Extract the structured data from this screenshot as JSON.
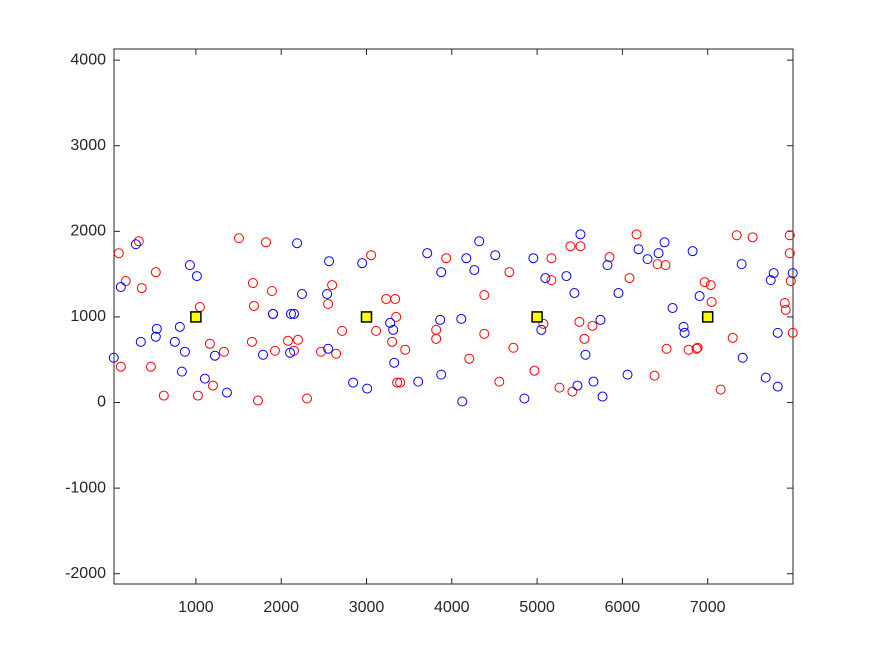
{
  "chart_data": {
    "type": "scatter",
    "xlim": [
      40,
      8000
    ],
    "ylim": [
      -2120,
      4130
    ],
    "xticks": [
      1000,
      2000,
      3000,
      4000,
      5000,
      6000,
      7000
    ],
    "yticks": [
      -2000,
      -1000,
      0,
      1000,
      2000,
      3000,
      4000
    ],
    "series": [
      {
        "color": "#ff0000",
        "marker": "circle",
        "x": [
          96,
          178,
          331,
          366,
          530,
          472,
          120,
          624,
          1024,
          1047,
          1164,
          1200,
          1329,
          1505,
          1657,
          1681,
          1669,
          1728,
          1822,
          1892,
          1904,
          1927,
          2080,
          2150,
          2197,
          2303,
          2467,
          2550,
          2597,
          2644,
          2714,
          3054,
          3113,
          3231,
          3301,
          3336,
          3348,
          3360,
          3395,
          3454,
          3817,
          3817,
          3935,
          4205,
          4381,
          4381,
          4557,
          4675,
          4722,
          4969,
          5074,
          5168,
          5168,
          5262,
          5414,
          5391,
          5508,
          5496,
          5555,
          5649,
          5849,
          6083,
          6166,
          6377,
          6412,
          6506,
          6518,
          6776,
          6870,
          6882,
          6964,
          7035,
          7046,
          7152,
          7293,
          7340,
          7527,
          7903,
          7915,
          7962,
          7962,
          7974,
          7997
        ],
        "values": [
          1744,
          1419,
          1884,
          1337,
          1523,
          419,
          419,
          81,
          81,
          1116,
          686,
          198,
          593,
          1919,
          709,
          1128,
          1396,
          23,
          1872,
          1303,
          1035,
          605,
          721,
          605,
          733,
          47,
          593,
          1151,
          1372,
          570,
          837,
          1721,
          837,
          1210,
          709,
          1210,
          1000,
          233,
          233,
          616,
          849,
          744,
          1686,
          512,
          1256,
          802,
          244,
          1523,
          640,
          372,
          919,
          1686,
          1430,
          174,
          128,
          1826,
          1826,
          942,
          744,
          896,
          1698,
          1454,
          1965,
          314,
          1617,
          1605,
          628,
          616,
          628,
          640,
          1407,
          1372,
          1175,
          151,
          756,
          1954,
          1930,
          1163,
          1082,
          1744,
          1954,
          1419,
          814
        ]
      },
      {
        "color": "#0000ff",
        "marker": "circle",
        "x": [
          37,
          120,
          296,
          354,
          530,
          542,
          753,
          812,
          836,
          871,
          930,
          1012,
          1106,
          1223,
          1364,
          1787,
          1904,
          2104,
          2115,
          2150,
          2186,
          2244,
          2538,
          2561,
          2550,
          2843,
          2949,
          3008,
          3277,
          3313,
          3325,
          3606,
          3712,
          3876,
          3864,
          3876,
          4111,
          4123,
          4170,
          4264,
          4322,
          4510,
          4851,
          4956,
          5050,
          5097,
          5344,
          5438,
          5508,
          5567,
          5473,
          5661,
          5743,
          5767,
          5825,
          5954,
          6060,
          6189,
          6295,
          6424,
          6494,
          6588,
          6717,
          6729,
          6823,
          6905,
          7398,
          7410,
          7680,
          7739,
          7774,
          7821,
          7821,
          7997
        ],
        "values": [
          523,
          1349,
          1849,
          709,
          768,
          861,
          709,
          884,
          361,
          593,
          1605,
          1477,
          279,
          547,
          116,
          558,
          1035,
          582,
          1035,
          1035,
          1861,
          1268,
          1268,
          1651,
          628,
          233,
          1628,
          163,
          930,
          849,
          465,
          244,
          1745,
          1523,
          965,
          326,
          977,
          12,
          1686,
          1547,
          1884,
          1721,
          47,
          1686,
          849,
          1454,
          1477,
          1279,
          1965,
          558,
          198,
          244,
          965,
          70,
          1605,
          1279,
          326,
          1791,
          1675,
          1745,
          1872,
          1105,
          884,
          814,
          1768,
          1244,
          1617,
          523,
          291,
          1430,
          1512,
          186,
          814,
          1512
        ]
      },
      {
        "color": "#ffff00",
        "marker": "square",
        "x": [
          1000,
          3000,
          5000,
          7000
        ],
        "values": [
          1000,
          1000,
          1000,
          1000
        ]
      }
    ]
  }
}
